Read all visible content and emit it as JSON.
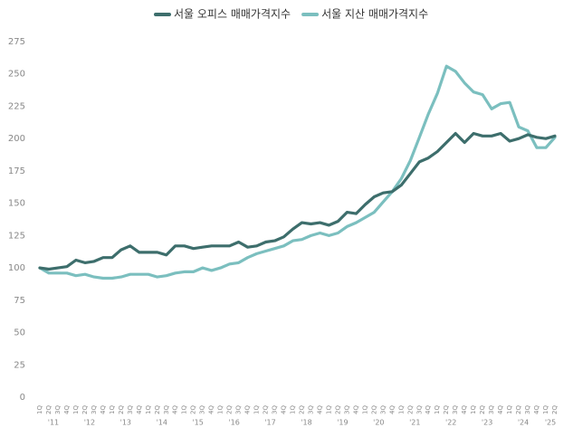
{
  "chart_data": {
    "type": "line",
    "categories": [
      "1Q",
      "2Q",
      "3Q",
      "4Q",
      "1Q",
      "2Q",
      "3Q",
      "4Q",
      "1Q",
      "2Q",
      "3Q",
      "4Q",
      "1Q",
      "2Q",
      "3Q",
      "4Q",
      "1Q",
      "2Q",
      "3Q",
      "4Q",
      "1Q",
      "2Q",
      "3Q",
      "4Q",
      "1Q",
      "2Q",
      "3Q",
      "4Q",
      "1Q",
      "2Q",
      "3Q",
      "4Q",
      "1Q",
      "2Q",
      "3Q",
      "4Q",
      "1Q",
      "2Q",
      "3Q",
      "4Q",
      "1Q",
      "2Q",
      "3Q",
      "4Q",
      "1Q",
      "2Q",
      "3Q",
      "4Q",
      "1Q",
      "2Q",
      "3Q",
      "4Q",
      "1Q",
      "2Q",
      "3Q",
      "4Q",
      "1Q",
      "2Q"
    ],
    "year_labels": [
      "'11",
      "'12",
      "'13",
      "'14",
      "'15",
      "'16",
      "'17",
      "'18",
      "'19",
      "'20",
      "'21",
      "'22",
      "'23",
      "'24",
      "'25"
    ],
    "series": [
      {
        "name": "서울 오피스 매매가격지수",
        "color": "#3d6e6c",
        "values": [
          100,
          99,
          100,
          101,
          106,
          104,
          105,
          108,
          108,
          114,
          117,
          112,
          112,
          112,
          110,
          117,
          117,
          115,
          116,
          117,
          117,
          117,
          120,
          116,
          117,
          120,
          121,
          124,
          130,
          135,
          134,
          135,
          133,
          136,
          143,
          142,
          149,
          155,
          158,
          159,
          164,
          173,
          182,
          185,
          190,
          197,
          204,
          197,
          204,
          202,
          202,
          204,
          198,
          200,
          203,
          201,
          200,
          202
        ]
      },
      {
        "name": "서울 지산 매매가격지수",
        "color": "#7bbfbf",
        "values": [
          100,
          96,
          96,
          96,
          94,
          95,
          93,
          92,
          92,
          93,
          95,
          95,
          95,
          93,
          94,
          96,
          97,
          97,
          100,
          98,
          100,
          103,
          104,
          108,
          111,
          113,
          115,
          117,
          121,
          122,
          125,
          127,
          125,
          127,
          132,
          135,
          139,
          143,
          151,
          159,
          169,
          183,
          201,
          219,
          235,
          256,
          252,
          243,
          236,
          234,
          223,
          227,
          228,
          209,
          206,
          193,
          193,
          201
        ]
      }
    ],
    "ylim": [
      0,
      275
    ],
    "yticks": [
      0,
      25,
      50,
      75,
      100,
      125,
      150,
      175,
      200,
      225,
      250,
      275
    ],
    "legend": "top"
  }
}
